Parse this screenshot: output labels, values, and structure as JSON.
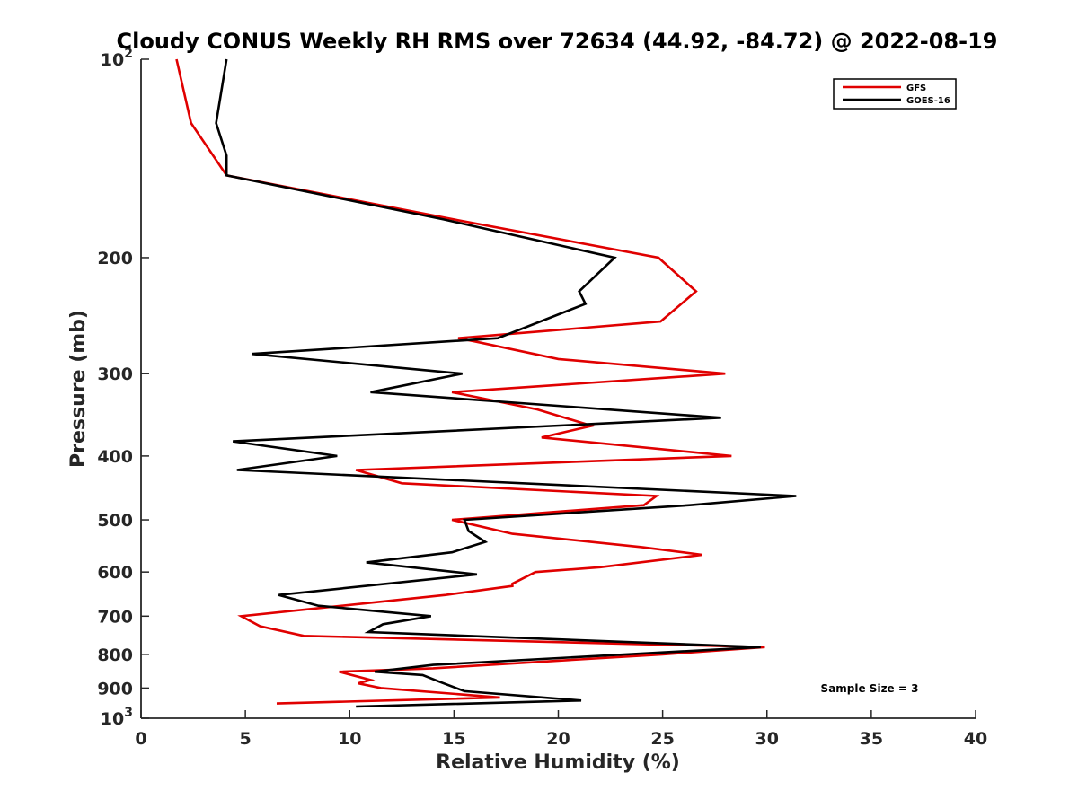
{
  "chart_data": {
    "type": "line",
    "title": "Cloudy CONUS Weekly RH RMS over 72634 (44.92, -84.72) @ 2022-08-19",
    "xlabel": "Relative Humidity (%)",
    "ylabel": "Pressure (mb)",
    "xlim": [
      0,
      40
    ],
    "ylim": [
      100,
      1000
    ],
    "y_scale": "log",
    "y_reversed": true,
    "x_ticks": [
      0,
      5,
      10,
      15,
      20,
      25,
      30,
      35,
      40
    ],
    "x_tick_labels": [
      "0",
      "5",
      "10",
      "15",
      "20",
      "25",
      "30",
      "35",
      "40"
    ],
    "y_ticks": [
      100,
      200,
      300,
      400,
      500,
      600,
      700,
      800,
      900,
      1000
    ],
    "y_tick_labels": [
      "10^2",
      "200",
      "300",
      "400",
      "500",
      "600",
      "700",
      "800",
      "900",
      "10^3"
    ],
    "grid": false,
    "legend_position": "top-right",
    "annotation": "Sample Size = 3",
    "series": [
      {
        "name": "GFS",
        "color": "#e00000",
        "points": [
          [
            1.7,
            100
          ],
          [
            2.4,
            125
          ],
          [
            4.1,
            150
          ],
          [
            15.0,
            175
          ],
          [
            24.8,
            200
          ],
          [
            26.6,
            225
          ],
          [
            24.9,
            250
          ],
          [
            15.2,
            265
          ],
          [
            16.0,
            268
          ],
          [
            20.0,
            285
          ],
          [
            28.0,
            300
          ],
          [
            14.9,
            320
          ],
          [
            19.0,
            340
          ],
          [
            21.6,
            360
          ],
          [
            19.2,
            375
          ],
          [
            28.3,
            400
          ],
          [
            10.3,
            420
          ],
          [
            12.5,
            440
          ],
          [
            24.7,
            460
          ],
          [
            24.1,
            475
          ],
          [
            14.9,
            500
          ],
          [
            17.8,
            525
          ],
          [
            24.0,
            550
          ],
          [
            26.9,
            565
          ],
          [
            22.0,
            590
          ],
          [
            18.9,
            600
          ],
          [
            17.8,
            625
          ],
          [
            17.8,
            630
          ],
          [
            14.6,
            650
          ],
          [
            4.8,
            700
          ],
          [
            5.7,
            725
          ],
          [
            7.8,
            750
          ],
          [
            29.9,
            780
          ],
          [
            25.0,
            800
          ],
          [
            14.0,
            840
          ],
          [
            9.5,
            850
          ],
          [
            11.0,
            875
          ],
          [
            10.4,
            885
          ],
          [
            11.5,
            900
          ],
          [
            17.2,
            930
          ],
          [
            6.5,
            950
          ]
        ]
      },
      {
        "name": "GOES-16",
        "color": "#000000",
        "points": [
          [
            4.1,
            100
          ],
          [
            3.6,
            125
          ],
          [
            4.1,
            140
          ],
          [
            4.1,
            150
          ],
          [
            14.5,
            175
          ],
          [
            22.7,
            200
          ],
          [
            21.0,
            225
          ],
          [
            21.3,
            235
          ],
          [
            17.1,
            265
          ],
          [
            5.3,
            280
          ],
          [
            15.4,
            300
          ],
          [
            11.0,
            320
          ],
          [
            27.8,
            350
          ],
          [
            4.4,
            380
          ],
          [
            9.4,
            400
          ],
          [
            4.6,
            420
          ],
          [
            31.4,
            460
          ],
          [
            26.3,
            475
          ],
          [
            15.5,
            500
          ],
          [
            15.7,
            520
          ],
          [
            16.5,
            540
          ],
          [
            14.9,
            560
          ],
          [
            10.8,
            580
          ],
          [
            16.1,
            605
          ],
          [
            6.6,
            650
          ],
          [
            8.5,
            675
          ],
          [
            13.9,
            700
          ],
          [
            11.6,
            720
          ],
          [
            10.9,
            740
          ],
          [
            29.7,
            780
          ],
          [
            14.0,
            830
          ],
          [
            11.2,
            850
          ],
          [
            13.5,
            860
          ],
          [
            14.3,
            880
          ],
          [
            15.5,
            910
          ],
          [
            21.1,
            940
          ],
          [
            10.3,
            960
          ]
        ]
      }
    ]
  }
}
